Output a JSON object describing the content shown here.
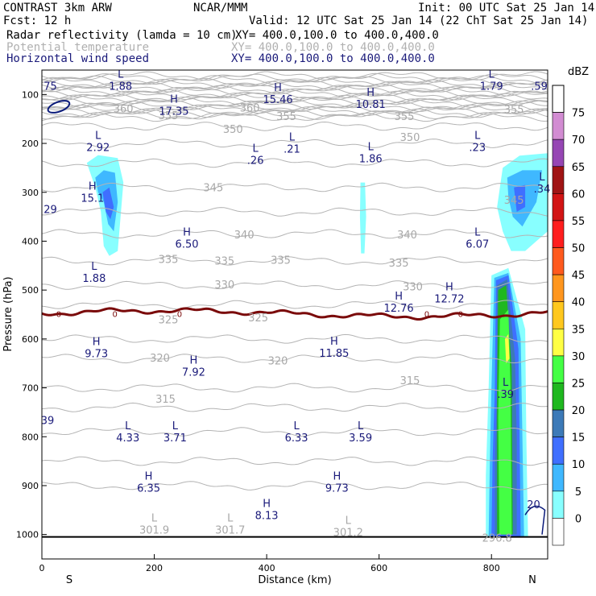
{
  "header": {
    "left1": "CONTRAST  3km ARW",
    "center1": "NCAR/MMM",
    "right1": "Init: 00 UTC Sat 25 Jan 14",
    "left2": "Fcst:    12 h",
    "right2": "Valid: 12 UTC Sat 25 Jan 14 (22 ChT Sat 25 Jan 14)",
    "fields": [
      {
        "name": "Radar reflectivity (lamda = 10 cm)",
        "xy": "XY= 400.0,100.0 to 400.0,400.0",
        "color": "#000000"
      },
      {
        "name": "Potential temperature",
        "xy": "XY= 400.0,100.0 to 400.0,400.0",
        "color": "#b0b0b0"
      },
      {
        "name": "Horizontal wind speed",
        "xy": "XY= 400.0,100.0 to 400.0,400.0",
        "color": "#1a1a7a"
      }
    ]
  },
  "chart_data": {
    "type": "cross-section",
    "xlabel": "Distance (km)",
    "ylabel": "Pressure (hPa)",
    "xlim": [
      0,
      900
    ],
    "ylim": [
      50,
      1050
    ],
    "xticks": [
      "0",
      "200",
      "400",
      "600",
      "800"
    ],
    "yticks": [
      "100",
      "200",
      "300",
      "400",
      "500",
      "600",
      "700",
      "800",
      "900",
      "1000"
    ],
    "end_labels": {
      "left": "S",
      "right": "N"
    },
    "colorbar": {
      "unit": "dBZ",
      "labels": [
        "0",
        "5",
        "10",
        "15",
        "20",
        "25",
        "30",
        "35",
        "40",
        "45",
        "50",
        "55",
        "60",
        "65",
        "70",
        "75"
      ],
      "colors": [
        "#ffffff",
        "#88ffff",
        "#3fb8ff",
        "#3f6fff",
        "#3c7ab8",
        "#1fb81f",
        "#44ff44",
        "#ffff44",
        "#ffc81e",
        "#ff961e",
        "#ff5a1e",
        "#ff1e1e",
        "#d21414",
        "#a01414",
        "#9646b4",
        "#d28cd2"
      ]
    },
    "theta_labels": [
      {
        "text": "360",
        "x": 145,
        "p": 128
      },
      {
        "text": "360",
        "x": 370,
        "p": 127
      },
      {
        "text": "355",
        "x": 225,
        "p": 142
      },
      {
        "text": "355",
        "x": 435,
        "p": 144
      },
      {
        "text": "355",
        "x": 645,
        "p": 144
      },
      {
        "text": "355",
        "x": 840,
        "p": 130
      },
      {
        "text": "350",
        "x": 340,
        "p": 170
      },
      {
        "text": "350",
        "x": 655,
        "p": 187
      },
      {
        "text": "345",
        "x": 305,
        "p": 290
      },
      {
        "text": "345",
        "x": 840,
        "p": 315
      },
      {
        "text": "340",
        "x": 360,
        "p": 386
      },
      {
        "text": "340",
        "x": 650,
        "p": 386
      },
      {
        "text": "335",
        "x": 225,
        "p": 436
      },
      {
        "text": "335",
        "x": 325,
        "p": 440
      },
      {
        "text": "335",
        "x": 425,
        "p": 438
      },
      {
        "text": "335",
        "x": 635,
        "p": 444
      },
      {
        "text": "330",
        "x": 325,
        "p": 488
      },
      {
        "text": "330",
        "x": 660,
        "p": 492
      },
      {
        "text": "325",
        "x": 225,
        "p": 560
      },
      {
        "text": "325",
        "x": 385,
        "p": 556
      },
      {
        "text": "320",
        "x": 210,
        "p": 638
      },
      {
        "text": "320",
        "x": 420,
        "p": 644
      },
      {
        "text": "315",
        "x": 220,
        "p": 722
      },
      {
        "text": "315",
        "x": 655,
        "p": 684
      },
      {
        "text": "296.8",
        "x": 810,
        "p": 1006
      }
    ],
    "surface_theta_labels": [
      {
        "sym": "L",
        "value": "301.9",
        "x": 200,
        "p": 990
      },
      {
        "sym": "L",
        "value": "301.7",
        "x": 335,
        "p": 990
      },
      {
        "sym": "L",
        "value": "301.2",
        "x": 545,
        "p": 995
      }
    ],
    "zero_isotherm_labels": [
      {
        "text": "0",
        "x": 30
      },
      {
        "text": "0",
        "x": 130
      },
      {
        "text": "0",
        "x": 245
      },
      {
        "text": "0",
        "x": 685
      },
      {
        "text": "0",
        "x": 745
      }
    ],
    "wind_labels": [
      {
        "sym": "",
        "value": "75",
        "x": 15,
        "p": 82
      },
      {
        "sym": "L",
        "value": "1.88",
        "x": 140,
        "p": 82
      },
      {
        "sym": "H",
        "value": "17.35",
        "x": 235,
        "p": 133
      },
      {
        "sym": "H",
        "value": "15.46",
        "x": 420,
        "p": 109
      },
      {
        "sym": "H",
        "value": "10.81",
        "x": 585,
        "p": 119
      },
      {
        "sym": "L",
        "value": "1.79",
        "x": 800,
        "p": 82
      },
      {
        "sym": "",
        "value": ".59",
        "x": 885,
        "p": 82
      },
      {
        "sym": "L",
        "value": "2.92",
        "x": 100,
        "p": 207
      },
      {
        "sym": "L",
        "value": ".26",
        "x": 380,
        "p": 234
      },
      {
        "sym": "L",
        "value": ".21",
        "x": 445,
        "p": 211
      },
      {
        "sym": "L",
        "value": "1.86",
        "x": 585,
        "p": 230
      },
      {
        "sym": "L",
        "value": ".23",
        "x": 775,
        "p": 207
      },
      {
        "sym": "H",
        "value": "15.1",
        "x": 90,
        "p": 311
      },
      {
        "sym": "",
        "value": "29",
        "x": 15,
        "p": 334
      },
      {
        "sym": "L",
        "value": ".34",
        "x": 890,
        "p": 292
      },
      {
        "sym": "H",
        "value": "6.50",
        "x": 258,
        "p": 405
      },
      {
        "sym": "L",
        "value": "6.07",
        "x": 775,
        "p": 405
      },
      {
        "sym": "L",
        "value": "1.88",
        "x": 93,
        "p": 475
      },
      {
        "sym": "H",
        "value": "12.72",
        "x": 725,
        "p": 517
      },
      {
        "sym": "H",
        "value": "12.76",
        "x": 635,
        "p": 536
      },
      {
        "sym": "H",
        "value": "9.73",
        "x": 97,
        "p": 629
      },
      {
        "sym": "H",
        "value": "11.85",
        "x": 520,
        "p": 628
      },
      {
        "sym": "H",
        "value": "7.92",
        "x": 270,
        "p": 667
      },
      {
        "sym": "L",
        "value": ".39",
        "x": 825,
        "p": 712
      },
      {
        "sym": "",
        "value": "39",
        "x": 10,
        "p": 766
      },
      {
        "sym": "L",
        "value": "4.33",
        "x": 153,
        "p": 801
      },
      {
        "sym": "L",
        "value": "3.71",
        "x": 237,
        "p": 801
      },
      {
        "sym": "L",
        "value": "6.33",
        "x": 453,
        "p": 801
      },
      {
        "sym": "L",
        "value": "3.59",
        "x": 567,
        "p": 801
      },
      {
        "sym": "H",
        "value": "6.35",
        "x": 190,
        "p": 904
      },
      {
        "sym": "H",
        "value": "9.73",
        "x": 525,
        "p": 904
      },
      {
        "sym": "H",
        "value": "8.13",
        "x": 400,
        "p": 960
      },
      {
        "sym": "",
        "value": "20",
        "x": 875,
        "p": 938
      }
    ],
    "reflectivity_regions": [
      {
        "dbz": 5,
        "pts": [
          [
            80,
            240
          ],
          [
            100,
            224
          ],
          [
            135,
            230
          ],
          [
            145,
            280
          ],
          [
            140,
            350
          ],
          [
            135,
            420
          ],
          [
            120,
            430
          ],
          [
            110,
            410
          ],
          [
            105,
            340
          ],
          [
            95,
            290
          ]
        ]
      },
      {
        "dbz": 10,
        "pts": [
          [
            95,
            270
          ],
          [
            110,
            255
          ],
          [
            130,
            260
          ],
          [
            135,
            320
          ],
          [
            128,
            380
          ],
          [
            118,
            365
          ],
          [
            110,
            320
          ],
          [
            100,
            300
          ]
        ]
      },
      {
        "dbz": 15,
        "pts": [
          [
            108,
            300
          ],
          [
            120,
            290
          ],
          [
            128,
            330
          ],
          [
            122,
            355
          ],
          [
            114,
            340
          ]
        ]
      },
      {
        "dbz": 5,
        "pts": [
          [
            567,
            280
          ],
          [
            575,
            280
          ],
          [
            577,
            350
          ],
          [
            574,
            425
          ],
          [
            568,
            425
          ],
          [
            566,
            350
          ]
        ]
      },
      {
        "dbz": 5,
        "pts": [
          [
            820,
            250
          ],
          [
            850,
            225
          ],
          [
            900,
            220
          ],
          [
            900,
            380
          ],
          [
            880,
            400
          ],
          [
            860,
            420
          ],
          [
            835,
            420
          ],
          [
            820,
            380
          ],
          [
            810,
            330
          ]
        ]
      },
      {
        "dbz": 10,
        "pts": [
          [
            828,
            270
          ],
          [
            855,
            255
          ],
          [
            890,
            255
          ],
          [
            880,
            320
          ],
          [
            855,
            370
          ],
          [
            838,
            350
          ],
          [
            830,
            310
          ]
        ]
      },
      {
        "dbz": 15,
        "pts": [
          [
            840,
            290
          ],
          [
            860,
            285
          ],
          [
            860,
            330
          ],
          [
            845,
            340
          ]
        ]
      },
      {
        "dbz": 5,
        "pts": [
          [
            800,
            470
          ],
          [
            830,
            455
          ],
          [
            860,
            580
          ],
          [
            862,
            800
          ],
          [
            865,
            1005
          ],
          [
            790,
            1005
          ],
          [
            790,
            880
          ],
          [
            795,
            700
          ]
        ]
      },
      {
        "dbz": 10,
        "pts": [
          [
            805,
            475
          ],
          [
            830,
            465
          ],
          [
            852,
            600
          ],
          [
            855,
            800
          ],
          [
            858,
            1005
          ],
          [
            795,
            1005
          ],
          [
            797,
            860
          ],
          [
            800,
            700
          ]
        ]
      },
      {
        "dbz": 15,
        "pts": [
          [
            808,
            480
          ],
          [
            830,
            470
          ],
          [
            848,
            620
          ],
          [
            850,
            800
          ],
          [
            852,
            1005
          ],
          [
            800,
            1005
          ],
          [
            802,
            850
          ],
          [
            806,
            700
          ]
        ]
      },
      {
        "dbz": 20,
        "pts": [
          [
            810,
            490
          ],
          [
            828,
            478
          ],
          [
            842,
            640
          ],
          [
            845,
            800
          ],
          [
            845,
            1000
          ],
          [
            806,
            1000
          ],
          [
            806,
            850
          ],
          [
            810,
            700
          ]
        ]
      },
      {
        "dbz": 25,
        "pts": [
          [
            812,
            500
          ],
          [
            826,
            490
          ],
          [
            836,
            660
          ],
          [
            838,
            1000
          ],
          [
            810,
            1000
          ],
          [
            810,
            700
          ]
        ]
      },
      {
        "dbz": 30,
        "pts": [
          [
            815,
            560
          ],
          [
            830,
            540
          ],
          [
            834,
            700
          ],
          [
            836,
            1000
          ],
          [
            814,
            1000
          ],
          [
            812,
            760
          ]
        ]
      },
      {
        "dbz": 35,
        "pts": [
          [
            824,
            600
          ],
          [
            830,
            590
          ],
          [
            832,
            640
          ],
          [
            826,
            650
          ]
        ]
      }
    ]
  }
}
